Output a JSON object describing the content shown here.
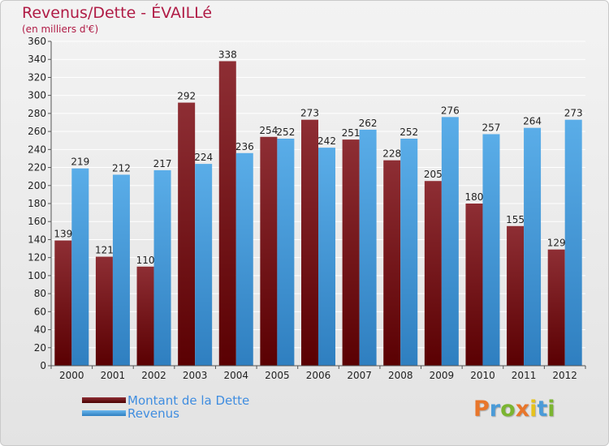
{
  "title": "Revenus/Dette - ÉVAILLé",
  "subtitle": "(en milliers d'€)",
  "brand": "Proxiti",
  "colors": {
    "dette_top": "#8e2e34",
    "dette_bottom": "#5a0002",
    "revenus_top": "#5aade8",
    "revenus_bottom": "#2f7fc0",
    "title": "#b01b45",
    "legend_text": "#3f8de0",
    "grid": "#ffffff",
    "axis_text": "#222222"
  },
  "legend": [
    {
      "label": "Montant de la Dette",
      "color": "#5a0002"
    },
    {
      "label": "Revenus",
      "color": "#3d95d8"
    }
  ],
  "chart_data": {
    "type": "bar",
    "categories": [
      "2000",
      "2001",
      "2002",
      "2003",
      "2004",
      "2005",
      "2006",
      "2007",
      "2008",
      "2009",
      "2010",
      "2011",
      "2012"
    ],
    "series": [
      {
        "name": "Montant de la Dette",
        "values": [
          139,
          121,
          110,
          292,
          338,
          254,
          273,
          251,
          228,
          205,
          180,
          155,
          129
        ]
      },
      {
        "name": "Revenus",
        "values": [
          219,
          212,
          217,
          224,
          236,
          252,
          242,
          262,
          252,
          276,
          257,
          264,
          273
        ]
      }
    ],
    "ylim": [
      0,
      360
    ],
    "yticks": [
      0,
      20,
      40,
      60,
      80,
      100,
      120,
      140,
      160,
      180,
      200,
      220,
      240,
      260,
      280,
      300,
      320,
      340,
      360
    ],
    "grid": true,
    "legend_position": "bottom-left"
  }
}
